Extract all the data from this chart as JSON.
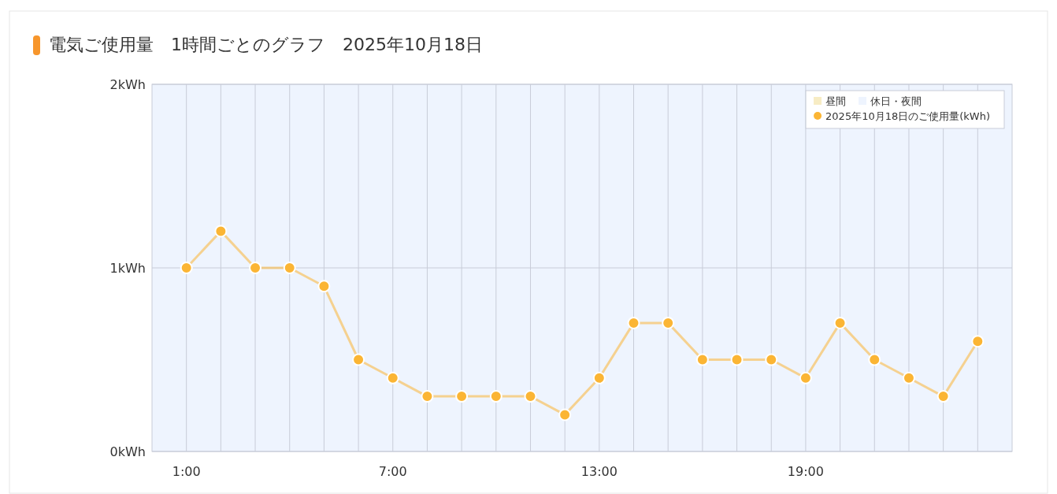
{
  "chart_data": {
    "type": "line",
    "title": "電気ご使用量　1時間ごとのグラフ　2025年10月18日",
    "x": [
      1,
      2,
      3,
      4,
      5,
      6,
      7,
      8,
      9,
      10,
      11,
      12,
      13,
      14,
      15,
      16,
      17,
      18,
      19,
      20,
      21,
      22,
      23,
      24
    ],
    "xlim": [
      0,
      25
    ],
    "xticks": [
      {
        "value": 1,
        "label": "1:00"
      },
      {
        "value": 2,
        "label": null
      },
      {
        "value": 3,
        "label": null
      },
      {
        "value": 4,
        "label": null
      },
      {
        "value": 5,
        "label": null
      },
      {
        "value": 6,
        "label": null
      },
      {
        "value": 7,
        "label": "7:00"
      },
      {
        "value": 8,
        "label": null
      },
      {
        "value": 9,
        "label": null
      },
      {
        "value": 10,
        "label": null
      },
      {
        "value": 11,
        "label": null
      },
      {
        "value": 12,
        "label": null
      },
      {
        "value": 13,
        "label": "13:00"
      },
      {
        "value": 14,
        "label": null
      },
      {
        "value": 15,
        "label": null
      },
      {
        "value": 16,
        "label": null
      },
      {
        "value": 17,
        "label": null
      },
      {
        "value": 18,
        "label": null
      },
      {
        "value": 19,
        "label": "19:00"
      },
      {
        "value": 20,
        "label": null
      },
      {
        "value": 21,
        "label": null
      },
      {
        "value": 22,
        "label": null
      },
      {
        "value": 23,
        "label": null
      },
      {
        "value": 24,
        "label": null
      }
    ],
    "ylim": [
      0,
      2
    ],
    "yticks": [
      {
        "value": 0,
        "label": "0kWh"
      },
      {
        "value": 1,
        "label": "1kWh"
      },
      {
        "value": 2,
        "label": "2kWh"
      }
    ],
    "series": [
      {
        "name": "昼間",
        "type": "area",
        "color": "#f7ecc4",
        "values": [
          null,
          null,
          null,
          null,
          null,
          null,
          null,
          null,
          null,
          null,
          null,
          null,
          null,
          null,
          null,
          null,
          null,
          null,
          null,
          null,
          null,
          null,
          null,
          null
        ]
      },
      {
        "name": "2025年10月18日のご使用量(kWh)",
        "color": "#fbb534",
        "values": [
          1.0,
          1.2,
          1.0,
          1.0,
          0.9,
          0.5,
          0.4,
          0.3,
          0.3,
          0.3,
          0.3,
          0.2,
          0.4,
          0.7,
          0.7,
          0.5,
          0.5,
          0.5,
          0.4,
          0.7,
          0.5,
          0.4,
          0.3,
          0.6
        ]
      }
    ],
    "bands": [
      {
        "axis": "x",
        "from": 0,
        "to": 25,
        "label": "休日・夜間",
        "color": "#eef4fe"
      }
    ],
    "grid": true,
    "legend": "top right",
    "marker": "circle"
  }
}
